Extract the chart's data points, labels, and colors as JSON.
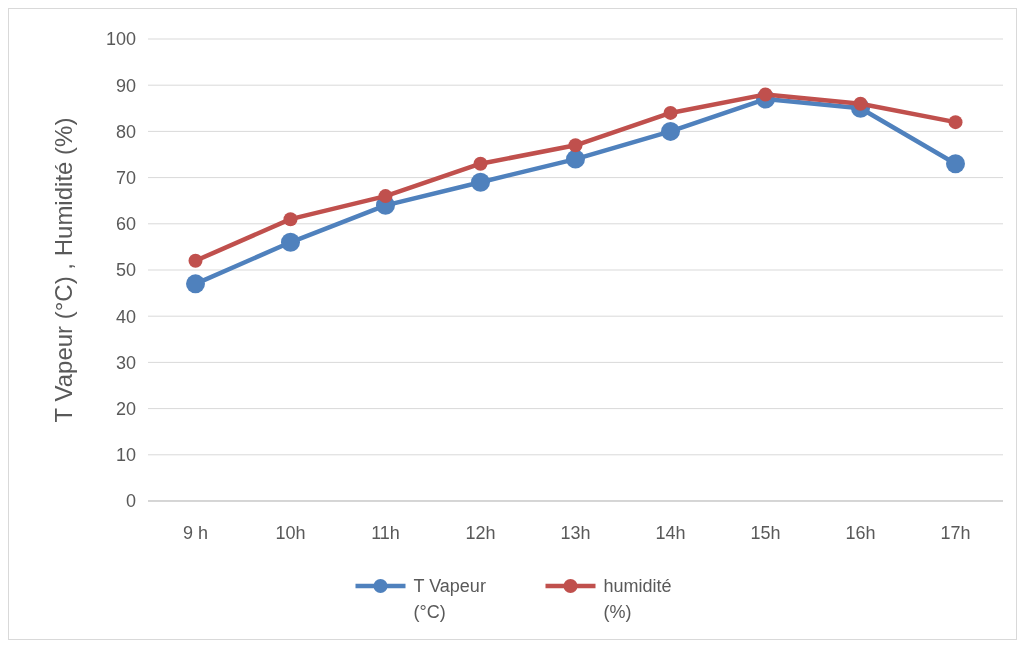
{
  "chart_data": {
    "type": "line",
    "ylabel": "T Vapeur (°C) , Humidité (%)",
    "categories": [
      "9 h",
      "10h",
      "11h",
      "12h",
      "13h",
      "14h",
      "15h",
      "16h",
      "17h"
    ],
    "series": [
      {
        "name": "T Vapeur (°C)",
        "color": "#4f81bd",
        "values": [
          47,
          56,
          64,
          69,
          74,
          80,
          87,
          85,
          73
        ]
      },
      {
        "name": "humidité (%)",
        "color": "#c0504d",
        "values": [
          52,
          61,
          66,
          73,
          77,
          84,
          88,
          86,
          82
        ]
      }
    ],
    "ylim": [
      0,
      100
    ],
    "yticks": [
      0,
      10,
      20,
      30,
      40,
      50,
      60,
      70,
      80,
      90,
      100
    ],
    "grid": "y",
    "legend": "bottom",
    "marker": "circle",
    "line_style": "solid"
  }
}
